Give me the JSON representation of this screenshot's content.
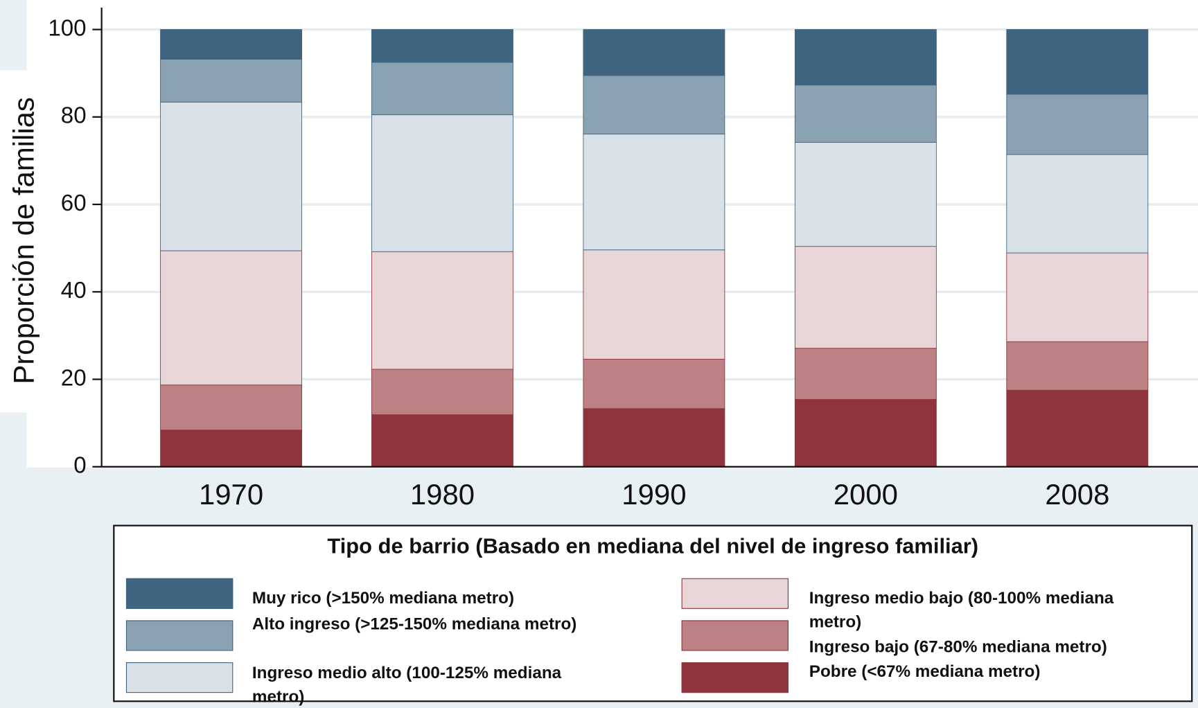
{
  "chart_data": {
    "type": "stacked_bar",
    "y_label": "Proporción de familias",
    "categories": [
      "1970",
      "1980",
      "1990",
      "2000",
      "2008"
    ],
    "series": [
      {
        "name": "Pobre (<67% mediana metro)",
        "color": "#8f343c",
        "values": [
          8.4,
          11.9,
          13.3,
          15.4,
          17.5
        ]
      },
      {
        "name": "Ingreso bajo (67-80% mediana metro)",
        "color": "#bc8283",
        "values": [
          10.3,
          10.4,
          11.3,
          11.7,
          11.1
        ]
      },
      {
        "name": "Ingreso medio bajo (80-100% mediana metro)",
        "color": "#e8d5d7",
        "values": [
          30.7,
          26.9,
          25.0,
          23.3,
          20.3
        ]
      },
      {
        "name": "Ingreso medio alto (100-125% mediana metro)",
        "color": "#d8e0e8",
        "values": [
          34.0,
          31.3,
          26.5,
          23.8,
          22.5
        ]
      },
      {
        "name": "Alto ingreso (>125-150% mediana metro)",
        "color": "#8aa2b2",
        "values": [
          9.8,
          12.0,
          13.4,
          13.1,
          13.8
        ]
      },
      {
        "name": "Muy rico (>150% mediana metro)",
        "color": "#3e6480",
        "values": [
          6.8,
          7.5,
          10.5,
          12.7,
          14.8
        ]
      }
    ],
    "ylim": [
      0,
      105
    ],
    "yticks": [
      0,
      20,
      40,
      60,
      80,
      100
    ],
    "grid": true,
    "legend_title": "Tipo de barrio  (Basado en mediana del nivel de ingreso familiar)"
  }
}
